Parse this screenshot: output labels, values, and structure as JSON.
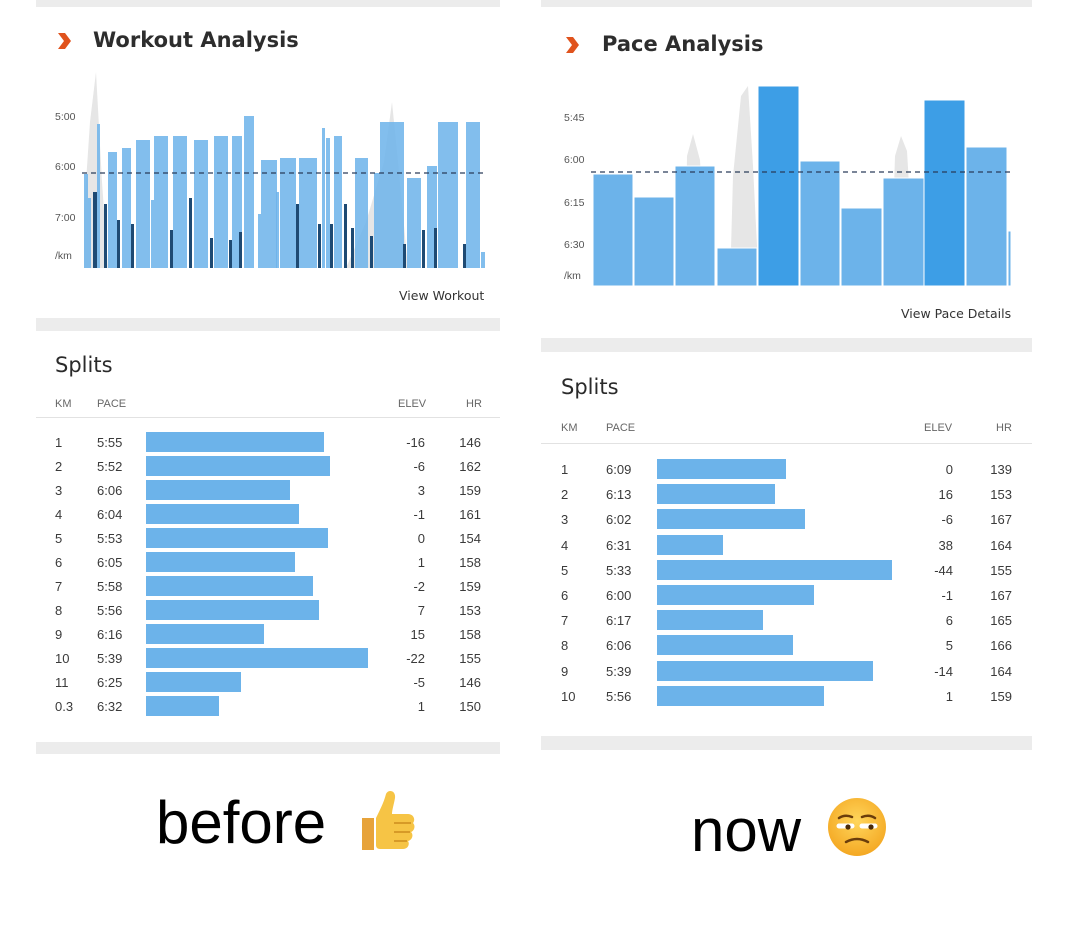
{
  "left": {
    "title": "Workout Analysis",
    "y_ticks": [
      "5:00",
      "6:00",
      "7:00",
      "/km"
    ],
    "view_link": "View Workout",
    "splits_title": "Splits",
    "headers": {
      "km": "KM",
      "pace": "PACE",
      "elev": "ELEV",
      "hr": "HR"
    },
    "rows": [
      {
        "km": "1",
        "pace": "5:55",
        "pace_fraction": 0.8,
        "elev": "-16",
        "hr": "146"
      },
      {
        "km": "2",
        "pace": "5:52",
        "pace_fraction": 0.83,
        "elev": "-6",
        "hr": "162"
      },
      {
        "km": "3",
        "pace": "6:06",
        "pace_fraction": 0.65,
        "elev": "3",
        "hr": "159"
      },
      {
        "km": "4",
        "pace": "6:04",
        "pace_fraction": 0.69,
        "elev": "-1",
        "hr": "161"
      },
      {
        "km": "5",
        "pace": "5:53",
        "pace_fraction": 0.82,
        "elev": "0",
        "hr": "154"
      },
      {
        "km": "6",
        "pace": "6:05",
        "pace_fraction": 0.67,
        "elev": "1",
        "hr": "158"
      },
      {
        "km": "7",
        "pace": "5:58",
        "pace_fraction": 0.75,
        "elev": "-2",
        "hr": "159"
      },
      {
        "km": "8",
        "pace": "5:56",
        "pace_fraction": 0.78,
        "elev": "7",
        "hr": "153"
      },
      {
        "km": "9",
        "pace": "6:16",
        "pace_fraction": 0.53,
        "elev": "15",
        "hr": "158"
      },
      {
        "km": "10",
        "pace": "5:39",
        "pace_fraction": 1.0,
        "elev": "-22",
        "hr": "155"
      },
      {
        "km": "11",
        "pace": "6:25",
        "pace_fraction": 0.43,
        "elev": "-5",
        "hr": "146"
      },
      {
        "km": "0.3",
        "pace": "6:32",
        "pace_fraction": 0.33,
        "elev": "1",
        "hr": "150"
      }
    ],
    "caption": "before",
    "caption_emoji": "thumbs-up"
  },
  "right": {
    "title": "Pace Analysis",
    "y_ticks": [
      "5:45",
      "6:00",
      "6:15",
      "6:30",
      "/km"
    ],
    "view_link": "View Pace Details",
    "splits_title": "Splits",
    "headers": {
      "km": "KM",
      "pace": "PACE",
      "elev": "ELEV",
      "hr": "HR"
    },
    "rows": [
      {
        "km": "1",
        "pace": "6:09",
        "pace_fraction": 0.55,
        "elev": "0",
        "hr": "139"
      },
      {
        "km": "2",
        "pace": "6:13",
        "pace_fraction": 0.5,
        "elev": "16",
        "hr": "153"
      },
      {
        "km": "3",
        "pace": "6:02",
        "pace_fraction": 0.63,
        "elev": "-6",
        "hr": "167"
      },
      {
        "km": "4",
        "pace": "6:31",
        "pace_fraction": 0.28,
        "elev": "38",
        "hr": "164"
      },
      {
        "km": "5",
        "pace": "5:33",
        "pace_fraction": 1.0,
        "elev": "-44",
        "hr": "155"
      },
      {
        "km": "6",
        "pace": "6:00",
        "pace_fraction": 0.67,
        "elev": "-1",
        "hr": "167"
      },
      {
        "km": "7",
        "pace": "6:17",
        "pace_fraction": 0.45,
        "elev": "6",
        "hr": "165"
      },
      {
        "km": "8",
        "pace": "6:06",
        "pace_fraction": 0.58,
        "elev": "5",
        "hr": "166"
      },
      {
        "km": "9",
        "pace": "5:39",
        "pace_fraction": 0.92,
        "elev": "-14",
        "hr": "164"
      },
      {
        "km": "10",
        "pace": "5:56",
        "pace_fraction": 0.71,
        "elev": "1",
        "hr": "159"
      }
    ],
    "caption": "now",
    "caption_emoji": "unamused-face"
  },
  "colors": {
    "accent": "#e0531d",
    "bar_light": "#6cb3ea",
    "bar_dark": "#1e4a73",
    "bar_bright": "#3d9ee6",
    "elevation": "#e6e6e6"
  }
}
